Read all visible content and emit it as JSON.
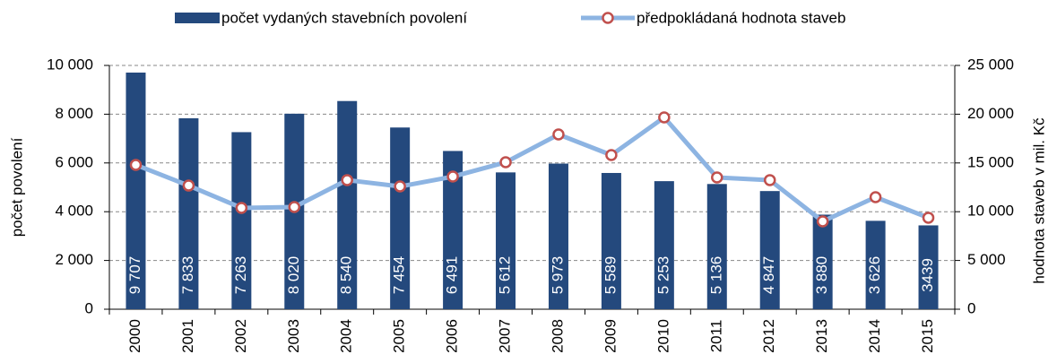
{
  "chart_data": {
    "type": "combo",
    "categories": [
      "2000",
      "2001",
      "2002",
      "2003",
      "2004",
      "2005",
      "2006",
      "2007",
      "2008",
      "2009",
      "2010",
      "2011",
      "2012",
      "2013",
      "2014",
      "2015"
    ],
    "series": [
      {
        "name": "počet vydaných stavebních povolení",
        "type": "bar",
        "color": "#24497d",
        "values": [
          9707,
          7833,
          7263,
          8020,
          8540,
          7454,
          6491,
          5612,
          5973,
          5589,
          5253,
          5136,
          4847,
          3880,
          3626,
          3439
        ],
        "value_labels": [
          "9 707",
          "7 833",
          "7 263",
          "8 020",
          "8 540",
          "7 454",
          "6 491",
          "5 612",
          "5 973",
          "5 589",
          "5 253",
          "5 136",
          "4 847",
          "3 880",
          "3 626",
          "3439"
        ]
      },
      {
        "name": "předpokládaná hodnota staveb",
        "type": "line",
        "axis": "y2",
        "color": "#8db4e2",
        "marker_color": "#c0504d",
        "values": [
          14800,
          12680,
          10390,
          10480,
          13240,
          12590,
          13600,
          15070,
          17920,
          15810,
          19670,
          13510,
          13240,
          9010,
          11490,
          9380
        ]
      }
    ],
    "ylabel": "počet povolení",
    "y2label": "hodnota staveb v mil. Kč",
    "ylim": [
      0,
      10000
    ],
    "yticks": [
      0,
      {
        "value": 2000,
        "label": "2 000"
      },
      {
        "value": 4000,
        "label": "4 000"
      },
      {
        "value": 6000,
        "label": "6 000"
      },
      {
        "value": 8000,
        "label": "8 000"
      },
      {
        "value": 10000,
        "label": "10 000"
      }
    ],
    "y2lim": [
      0,
      25000
    ],
    "y2ticks": [
      0,
      {
        "value": 5000,
        "label": "5 000"
      },
      {
        "value": 10000,
        "label": "10 000"
      },
      {
        "value": 15000,
        "label": "15 000"
      },
      {
        "value": 20000,
        "label": "20 000"
      },
      {
        "value": 25000,
        "label": "25 000"
      }
    ],
    "grid": true,
    "legend": "top"
  }
}
